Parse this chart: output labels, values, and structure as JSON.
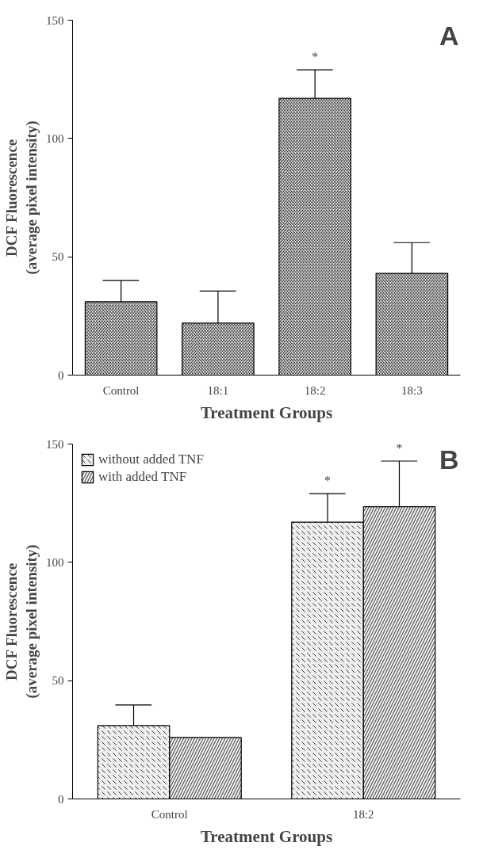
{
  "chart_data": [
    {
      "type": "bar",
      "xlabel": "Treatment Groups",
      "ylabel": "DCF Fluorescence\n(average pixel intensity)",
      "categories": [
        "Control",
        "18:1",
        "18:2",
        "18:3"
      ],
      "series": [
        {
          "color": "#eeeeee",
          "values": [
            31,
            22,
            117,
            43
          ],
          "errors": [
            [
              31,
              40
            ],
            [
              22,
              35.5
            ],
            [
              117,
              129
            ],
            [
              43,
              56
            ]
          ]
        }
      ],
      "ylim": [
        0,
        150
      ],
      "yticks": [
        0,
        50,
        100,
        150
      ],
      "grid": false,
      "legend": false,
      "annotations": [
        {
          "text": "*",
          "x": "18:2",
          "y": 129
        },
        "A"
      ]
    },
    {
      "type": "bar",
      "xlabel": "Treatment Groups",
      "ylabel": "DCF Fluorescence\n(average pixel intensity)",
      "categories": [
        "Control",
        "18:2"
      ],
      "series": [
        {
          "name": "without added TNF",
          "color": "#eeeeee",
          "values": [
            31,
            117
          ],
          "errors": [
            [
              31,
              39.7
            ],
            [
              117,
              129
            ]
          ]
        },
        {
          "name": "with added TNF",
          "color": "#eeeeee",
          "values": [
            26,
            123.5
          ],
          "errors": [
            null,
            [
              123.5,
              142.8
            ]
          ]
        }
      ],
      "ylim": [
        0,
        150
      ],
      "yticks": [
        0,
        50,
        100,
        150
      ],
      "grid": false,
      "legend": "top left",
      "annotations": [
        "*",
        "*",
        "B"
      ]
    }
  ]
}
